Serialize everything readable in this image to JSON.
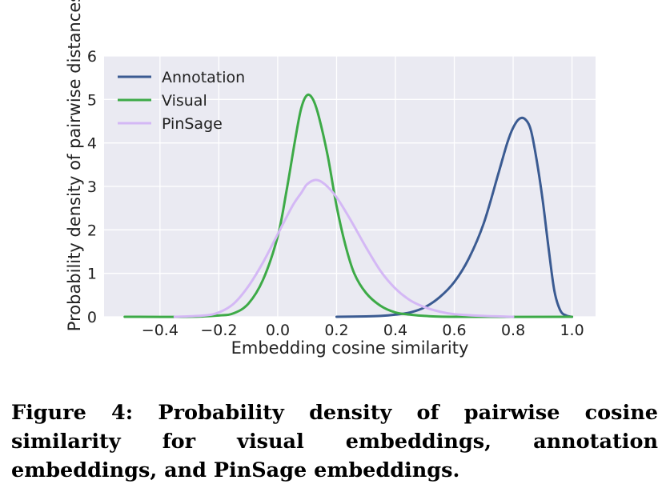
{
  "chart_data": {
    "type": "line",
    "xlabel": "Embedding cosine similarity",
    "ylabel": "Probability density of pairwise distances",
    "xlim": [
      -0.59,
      1.08
    ],
    "ylim": [
      0,
      6
    ],
    "xticks": [
      -0.4,
      -0.2,
      0.0,
      0.2,
      0.4,
      0.6,
      0.8,
      1.0
    ],
    "xtick_labels": [
      "−0.4",
      "−0.2",
      "0.0",
      "0.2",
      "0.4",
      "0.6",
      "0.8",
      "1.0"
    ],
    "yticks": [
      0,
      1,
      2,
      3,
      4,
      5,
      6
    ],
    "ytick_labels": [
      "0",
      "1",
      "2",
      "3",
      "4",
      "5",
      "6"
    ],
    "grid": true,
    "legend_position": "top-left",
    "series": [
      {
        "name": "Annotation",
        "color": "#3b5b92",
        "x": [
          0.2,
          0.3,
          0.35,
          0.4,
          0.45,
          0.5,
          0.55,
          0.6,
          0.65,
          0.7,
          0.75,
          0.78,
          0.8,
          0.82,
          0.84,
          0.86,
          0.88,
          0.9,
          0.92,
          0.94,
          0.96,
          0.98,
          1.0
        ],
        "y": [
          0.0,
          0.01,
          0.02,
          0.05,
          0.1,
          0.22,
          0.45,
          0.8,
          1.35,
          2.15,
          3.3,
          4.0,
          4.35,
          4.55,
          4.55,
          4.3,
          3.6,
          2.7,
          1.6,
          0.6,
          0.15,
          0.03,
          0.0
        ]
      },
      {
        "name": "Visual",
        "color": "#3daa47",
        "x": [
          -0.52,
          -0.3,
          -0.2,
          -0.15,
          -0.1,
          -0.05,
          0.0,
          0.03,
          0.06,
          0.08,
          0.1,
          0.12,
          0.14,
          0.17,
          0.2,
          0.23,
          0.26,
          0.3,
          0.35,
          0.4,
          0.45,
          0.5,
          0.6,
          1.0
        ],
        "y": [
          0.0,
          0.0,
          0.03,
          0.08,
          0.3,
          0.85,
          1.85,
          2.9,
          4.1,
          4.8,
          5.1,
          5.0,
          4.6,
          3.7,
          2.55,
          1.65,
          1.0,
          0.55,
          0.25,
          0.1,
          0.05,
          0.02,
          0.0,
          0.0
        ]
      },
      {
        "name": "PinSage",
        "color": "#d4b8f5",
        "x": [
          -0.35,
          -0.25,
          -0.2,
          -0.15,
          -0.1,
          -0.05,
          0.0,
          0.05,
          0.08,
          0.1,
          0.13,
          0.16,
          0.2,
          0.25,
          0.3,
          0.35,
          0.4,
          0.45,
          0.5,
          0.55,
          0.6,
          0.7,
          0.8
        ],
        "y": [
          0.0,
          0.03,
          0.1,
          0.3,
          0.7,
          1.25,
          1.9,
          2.55,
          2.85,
          3.05,
          3.15,
          3.05,
          2.75,
          2.2,
          1.6,
          1.05,
          0.65,
          0.38,
          0.22,
          0.12,
          0.06,
          0.02,
          0.0
        ]
      }
    ]
  },
  "caption": "Figure 4: Probability density of pairwise cosine similarity for visual embeddings, annotation embeddings, and PinSage embeddings."
}
